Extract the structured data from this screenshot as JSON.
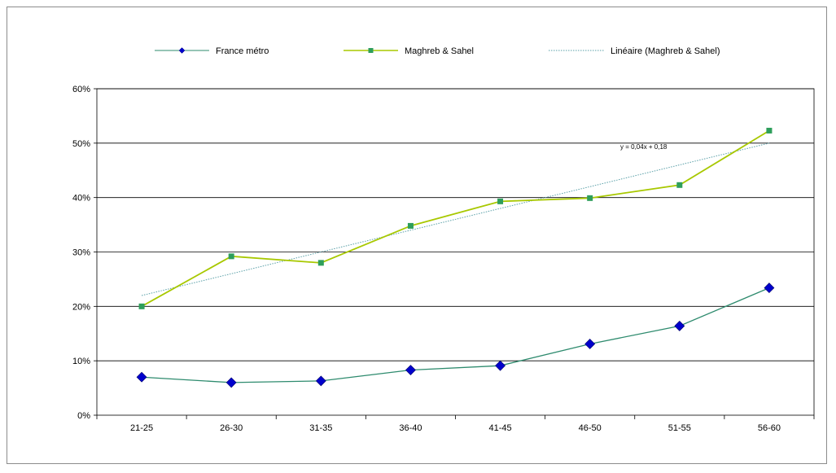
{
  "chart_data": {
    "type": "line",
    "title": "",
    "xlabel": "",
    "ylabel": "",
    "categories": [
      "21-25",
      "26-30",
      "31-35",
      "36-40",
      "41-45",
      "46-50",
      "51-55",
      "56-60"
    ],
    "ylim": [
      0,
      0.6
    ],
    "yticks": [
      0,
      0.1,
      0.2,
      0.3,
      0.4,
      0.5,
      0.6
    ],
    "ytick_labels": [
      "0%",
      "10%",
      "20%",
      "30%",
      "40%",
      "50%",
      "60%"
    ],
    "grid": "horizontal",
    "legend_position": "top",
    "series": [
      {
        "name": "France métro",
        "values": [
          0.07,
          0.06,
          0.063,
          0.083,
          0.091,
          0.131,
          0.164,
          0.234
        ],
        "color": "#2e8b6e",
        "marker": "diamond",
        "marker_color": "#0000cc"
      },
      {
        "name": "Maghreb & Sahel",
        "values": [
          0.2,
          0.292,
          0.28,
          0.348,
          0.393,
          0.399,
          0.423,
          0.523
        ],
        "color": "#a8c800",
        "marker": "square",
        "marker_color": "#2e9e5b"
      }
    ],
    "trendline": {
      "name": "Linéaire (Maghreb & Sahel)",
      "of_series": "Maghreb & Sahel",
      "equation": "y = 0,04x + 0,18",
      "slope": 0.04,
      "intercept": 0.18,
      "color": "#5aa0a8"
    }
  }
}
